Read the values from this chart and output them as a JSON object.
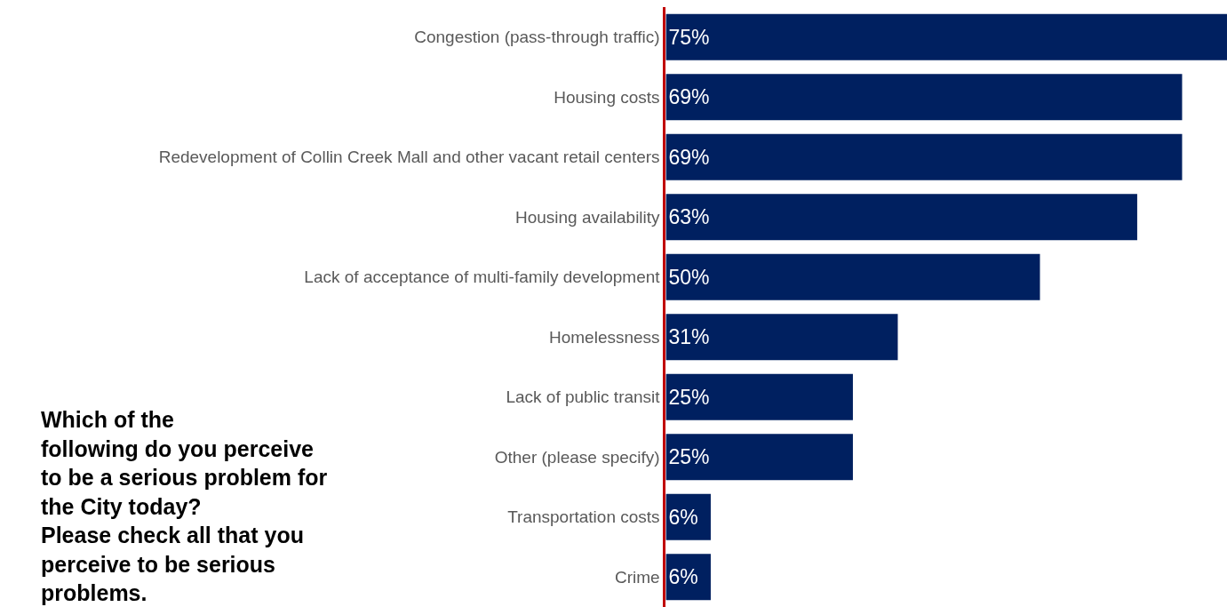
{
  "chart_data": {
    "type": "bar",
    "orientation": "horizontal",
    "title": "Which of the\nfollowing do you perceive\nto be a serious problem for\nthe City today?\nPlease check all that you\nperceive to be serious\nproblems.",
    "categories": [
      "Congestion (pass-through traffic)",
      "Housing costs",
      "Redevelopment of Collin Creek Mall and other vacant retail centers",
      "Housing availability",
      "Lack of acceptance of multi-family development",
      "Homelessness",
      "Lack of public transit",
      "Other (please specify)",
      "Transportation costs",
      "Crime"
    ],
    "values": [
      75,
      69,
      69,
      63,
      50,
      31,
      25,
      25,
      6,
      6
    ],
    "value_labels": [
      "75%",
      "69%",
      "69%",
      "63%",
      "50%",
      "31%",
      "25%",
      "25%",
      "6%",
      "6%"
    ],
    "color": "#002060",
    "legend": false
  }
}
